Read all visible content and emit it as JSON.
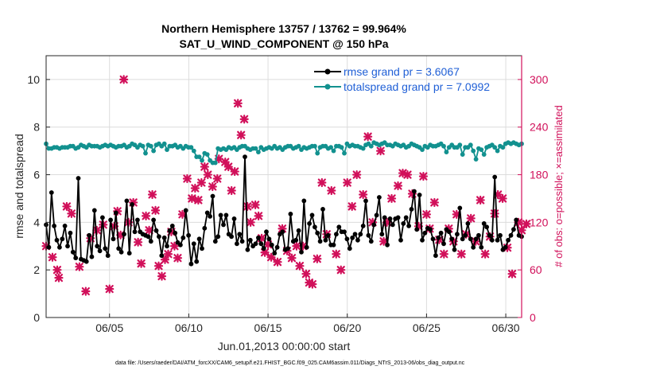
{
  "chart_data": {
    "type": "line",
    "title": "Northern Hemisphere 13757 / 13762 = 99.964%",
    "subtitle": "SAT_U_WIND_COMPONENT @ 150 hPa",
    "xlabel": "Jun.01,2013 00:00:00 start",
    "ylabel": "rmse and totalspread",
    "ylabel_right": "# of obs: o=possible; ×=assimilated",
    "x_ticks": [
      "06/05",
      "06/10",
      "06/15",
      "06/20",
      "06/25",
      "06/30"
    ],
    "x_tick_days": [
      5,
      10,
      15,
      20,
      25,
      30
    ],
    "xlim": [
      1,
      31
    ],
    "ylim": [
      0,
      11
    ],
    "y_ticks": [
      0,
      2,
      4,
      6,
      8,
      10
    ],
    "ylim_right": [
      0,
      330
    ],
    "y_ticks_right": [
      0,
      60,
      120,
      180,
      240,
      300
    ],
    "grid": true,
    "legend_position": "top-right",
    "footer": "data file: /Users/raeder/DAI/ATM_forcXX/CAM6_setup/f.e21.FHIST_BGC.f09_025.CAM6assim.011/Diags_NTrS_2013-06/obs_diag_output.nc",
    "colors": {
      "rmse": "#000000",
      "spread": "#12918f",
      "obs": "#d1105a",
      "legend_text": "#1f5fd6"
    },
    "series": [
      {
        "name": "rmse grand pr = 3.6067",
        "values": [
          3.9,
          2.95,
          5.25,
          3.85,
          3.25,
          2.95,
          3.3,
          3.85,
          3.0,
          3.55,
          2.75,
          2.5,
          5.85,
          2.45,
          2.4,
          2.35,
          3.45,
          2.55,
          4.5,
          3.0,
          2.8,
          4.2,
          2.9,
          2.6,
          4.1,
          3.3,
          4.4,
          2.9,
          2.75,
          3.5,
          4.9,
          2.7,
          4.75,
          3.6,
          4.1,
          3.6,
          3.5,
          3.45,
          3.4,
          3.2,
          4.1,
          3.65,
          3.4,
          2.6,
          3.35,
          3.0,
          3.65,
          3.85,
          3.55,
          3.15,
          3.05,
          3.35,
          4.5,
          3.45,
          2.25,
          3.1,
          2.35,
          3.3,
          2.9,
          3.75,
          4.4,
          4.25,
          5.1,
          3.2,
          3.4,
          4.3,
          3.9,
          4.3,
          3.5,
          3.4,
          4.15,
          3.1,
          3.5,
          3.2,
          6.75,
          2.85,
          3.25,
          3.0,
          3.1,
          3.35,
          3.1,
          2.9,
          3.6,
          3.3,
          3.05,
          2.7,
          2.95,
          3.5,
          3.6,
          2.85,
          2.9,
          4.35,
          3.2,
          3.25,
          3.65,
          2.75,
          4.9,
          2.95,
          3.95,
          4.3,
          3.8,
          3.55,
          3.2,
          4.55,
          3.25,
          3.45,
          3.05,
          3.05,
          3.5,
          3.8,
          3.6,
          3.6,
          3.3,
          2.9,
          3.35,
          3.5,
          3.25,
          3.5,
          3.85,
          4.9,
          3.45,
          3.2,
          3.9,
          4.3,
          5.05,
          3.5,
          4.2,
          3.05,
          4.15,
          3.9,
          4.15,
          4.2,
          3.25,
          3.95,
          4.2,
          3.85,
          4.55,
          5.3,
          3.7,
          5.15,
          3.25,
          3.55,
          3.75,
          3.7,
          3.3,
          2.6,
          3.35,
          3.55,
          3.1,
          3.7,
          3.6,
          3.3,
          2.85,
          3.5,
          4.6,
          3.3,
          3.45,
          3.95,
          3.3,
          2.95,
          3.3,
          3.45,
          2.95,
          3.95,
          3.8,
          3.45,
          3.25,
          5.9,
          3.25,
          3.45,
          2.85,
          2.95,
          3.25,
          3.45,
          3.7,
          4.1,
          3.45,
          3.4
        ]
      },
      {
        "name": "totalspread grand pr = 7.0992",
        "values": [
          7.3,
          7.1,
          7.1,
          7.15,
          7.15,
          7.1,
          7.15,
          7.15,
          7.15,
          7.2,
          7.2,
          7.1,
          7.15,
          7.25,
          7.2,
          7.15,
          7.25,
          7.2,
          7.2,
          7.2,
          7.15,
          7.2,
          7.25,
          7.2,
          7.25,
          7.2,
          7.15,
          7.2,
          7.2,
          7.25,
          7.15,
          7.2,
          7.3,
          7.25,
          7.15,
          7.25,
          7.2,
          6.9,
          7.25,
          7.2,
          7.0,
          7.25,
          7.3,
          7.2,
          7.3,
          7.05,
          7.2,
          7.2,
          7.25,
          7.15,
          7.2,
          7.1,
          7.2,
          7.15,
          7.15,
          7.0,
          6.75,
          6.75,
          6.6,
          6.9,
          6.85,
          6.6,
          6.5,
          6.5,
          7.1,
          7.05,
          7.1,
          7.05,
          7.15,
          7.1,
          7.15,
          7.05,
          7.15,
          7.2,
          7.2,
          7.1,
          7.05,
          7.1,
          7.1,
          6.95,
          7.15,
          7.05,
          7.1,
          7.15,
          7.1,
          7.2,
          7.1,
          7.15,
          7.05,
          7.15,
          7.2,
          7.2,
          7.1,
          7.15,
          7.2,
          7.05,
          7.15,
          7.1,
          7.15,
          7.2,
          7.2,
          6.9,
          7.15,
          7.2,
          7.2,
          7.1,
          7.15,
          7.0,
          7.2,
          7.2,
          7.15,
          6.9,
          7.3,
          7.2,
          7.25,
          7.2,
          7.2,
          7.15,
          7.1,
          7.25,
          7.3,
          7.2,
          7.35,
          7.3,
          7.25,
          7.3,
          7.35,
          7.25,
          7.25,
          7.2,
          7.3,
          7.25,
          7.2,
          7.25,
          7.15,
          7.2,
          7.3,
          7.25,
          7.2,
          7.15,
          7.05,
          7.2,
          7.15,
          7.25,
          7.2,
          7.2,
          7.25,
          7.3,
          7.2,
          6.95,
          7.15,
          7.25,
          7.15,
          7.15,
          7.25,
          6.85,
          7.15,
          7.15,
          7.25,
          7.0,
          6.65,
          7.1,
          7.05,
          6.85,
          7.15,
          7.2,
          7.25,
          7.15,
          7.0,
          7.2,
          7.15,
          7.3,
          7.35,
          7.3,
          7.35,
          7.3,
          7.25,
          7.3
        ]
      }
    ],
    "obs_possible": [
      [
        1.0,
        90
      ],
      [
        1.4,
        76
      ],
      [
        1.7,
        60
      ],
      [
        1.8,
        50
      ],
      [
        2.3,
        140
      ],
      [
        2.6,
        131
      ],
      [
        3.1,
        64
      ],
      [
        3.5,
        33
      ],
      [
        3.8,
        100
      ],
      [
        4.2,
        110
      ],
      [
        4.6,
        117
      ],
      [
        5.0,
        36
      ],
      [
        5.3,
        115
      ],
      [
        5.5,
        134
      ],
      [
        5.7,
        104
      ],
      [
        5.9,
        300
      ],
      [
        6.2,
        120
      ],
      [
        6.5,
        145
      ],
      [
        6.8,
        95
      ],
      [
        7.0,
        68
      ],
      [
        7.3,
        128
      ],
      [
        7.5,
        110
      ],
      [
        7.7,
        155
      ],
      [
        7.9,
        135
      ],
      [
        8.1,
        65
      ],
      [
        8.3,
        52
      ],
      [
        8.5,
        73
      ],
      [
        8.7,
        80
      ],
      [
        8.9,
        108
      ],
      [
        9.1,
        90
      ],
      [
        9.3,
        75
      ],
      [
        9.6,
        130
      ],
      [
        9.9,
        175
      ],
      [
        10.2,
        150
      ],
      [
        10.4,
        163
      ],
      [
        10.6,
        148
      ],
      [
        10.8,
        170
      ],
      [
        11.0,
        190
      ],
      [
        11.2,
        180
      ],
      [
        11.5,
        165
      ],
      [
        11.8,
        175
      ],
      [
        11.9,
        200
      ],
      [
        12.3,
        196
      ],
      [
        12.5,
        190
      ],
      [
        12.7,
        160
      ],
      [
        12.9,
        184
      ],
      [
        13.1,
        270
      ],
      [
        13.3,
        230
      ],
      [
        13.5,
        250
      ],
      [
        13.7,
        140
      ],
      [
        13.9,
        120
      ],
      [
        14.2,
        142
      ],
      [
        14.4,
        128
      ],
      [
        14.6,
        100
      ],
      [
        14.8,
        82
      ],
      [
        15.0,
        92
      ],
      [
        15.2,
        76
      ],
      [
        15.6,
        70
      ],
      [
        15.9,
        112
      ],
      [
        16.2,
        84
      ],
      [
        16.5,
        75
      ],
      [
        16.8,
        90
      ],
      [
        17.0,
        65
      ],
      [
        17.2,
        90
      ],
      [
        17.4,
        55
      ],
      [
        17.6,
        44
      ],
      [
        17.8,
        42
      ],
      [
        18.1,
        74
      ],
      [
        18.4,
        170
      ],
      [
        18.7,
        105
      ],
      [
        19.0,
        160
      ],
      [
        19.3,
        80
      ],
      [
        19.6,
        60
      ],
      [
        20.0,
        170
      ],
      [
        20.3,
        140
      ],
      [
        20.6,
        180
      ],
      [
        21.0,
        155
      ],
      [
        21.3,
        228
      ],
      [
        21.6,
        120
      ],
      [
        22.1,
        210
      ],
      [
        22.3,
        96
      ],
      [
        22.5,
        120
      ],
      [
        22.8,
        150
      ],
      [
        23.2,
        166
      ],
      [
        23.5,
        182
      ],
      [
        23.8,
        180
      ],
      [
        24.1,
        156
      ],
      [
        24.5,
        115
      ],
      [
        24.8,
        178
      ],
      [
        25.0,
        130
      ],
      [
        25.2,
        112
      ],
      [
        25.5,
        145
      ],
      [
        25.8,
        98
      ],
      [
        26.1,
        80
      ],
      [
        26.4,
        112
      ],
      [
        26.7,
        96
      ],
      [
        26.9,
        130
      ],
      [
        27.2,
        80
      ],
      [
        27.5,
        105
      ],
      [
        27.8,
        125
      ],
      [
        28.1,
        96
      ],
      [
        28.4,
        148
      ],
      [
        28.7,
        80
      ],
      [
        29.0,
        102
      ],
      [
        29.3,
        131
      ],
      [
        29.5,
        155
      ],
      [
        29.8,
        150
      ],
      [
        30.1,
        88
      ],
      [
        30.4,
        55
      ],
      [
        30.8,
        120
      ],
      [
        31.0,
        110
      ],
      [
        31.3,
        118
      ]
    ]
  }
}
